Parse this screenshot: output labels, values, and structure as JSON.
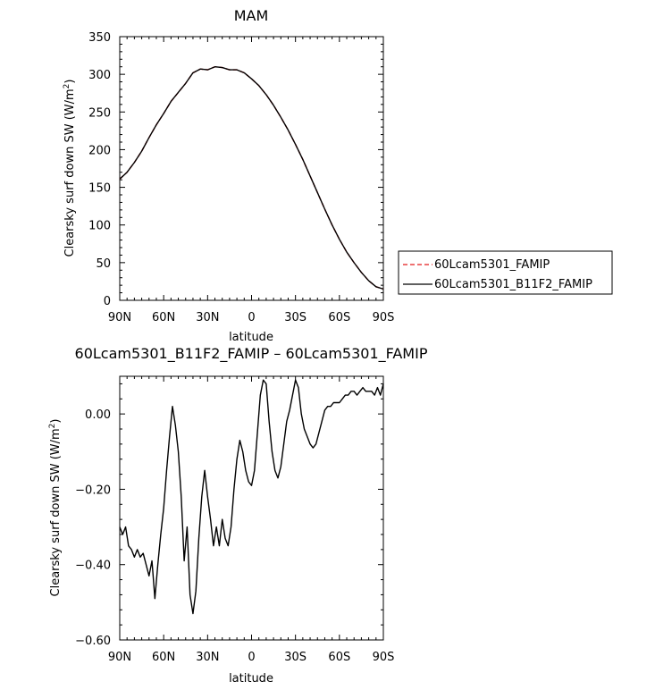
{
  "chart_data": [
    {
      "type": "line",
      "title": "MAM",
      "xlabel": "latitude",
      "ylabel": "Clearsky surf down SW (W/m²)",
      "ylabel_main": "Clearsky surf down SW (W/m",
      "ylabel_sup": "2",
      "ylabel_end": ")",
      "xlim": [
        90,
        -90
      ],
      "ylim": [
        0,
        350
      ],
      "xticks": [
        90,
        60,
        30,
        0,
        -30,
        -60,
        -90
      ],
      "xticklabels": [
        "90N",
        "60N",
        "30N",
        "0",
        "30S",
        "60S",
        "90S"
      ],
      "yticks": [
        0,
        50,
        100,
        150,
        200,
        250,
        300,
        350
      ],
      "yticklabels": [
        "0",
        "50",
        "100",
        "150",
        "200",
        "250",
        "300",
        "350"
      ],
      "legend_position": "right",
      "x": [
        90,
        85,
        80,
        75,
        70,
        65,
        60,
        55,
        50,
        45,
        40,
        35,
        30,
        25,
        20,
        15,
        10,
        5,
        0,
        -5,
        -10,
        -15,
        -20,
        -25,
        -30,
        -35,
        -40,
        -45,
        -50,
        -55,
        -60,
        -65,
        -70,
        -75,
        -80,
        -85,
        -90
      ],
      "series": [
        {
          "name": "60Lcam5301_FAMIP",
          "color": "#e41a1c",
          "dash": true,
          "values": [
            161,
            170,
            183,
            198,
            216,
            233,
            248,
            264,
            276,
            288,
            302,
            307,
            306,
            310,
            309,
            306,
            306,
            302,
            294,
            285,
            273,
            259,
            243,
            226,
            207,
            187,
            165,
            143,
            121,
            100,
            81,
            64,
            50,
            37,
            26,
            18,
            15
          ]
        },
        {
          "name": "60Lcam5301_B11F2_FAMIP",
          "color": "#000000",
          "dash": false,
          "values": [
            161,
            170,
            183,
            198,
            216,
            233,
            248,
            264,
            276,
            288,
            302,
            307,
            306,
            310,
            309,
            306,
            306,
            302,
            294,
            285,
            273,
            259,
            243,
            226,
            207,
            187,
            165,
            143,
            121,
            100,
            81,
            64,
            50,
            37,
            26,
            18,
            15
          ]
        }
      ]
    },
    {
      "type": "line",
      "title": "60Lcam5301_B11F2_FAMIP – 60Lcam5301_FAMIP",
      "xlabel": "latitude",
      "ylabel": "Clearsky surf down SW (W/m²)",
      "ylabel_main": "Clearsky surf down SW (W/m",
      "ylabel_sup": "2",
      "ylabel_end": ")",
      "xlim": [
        90,
        -90
      ],
      "ylim": [
        -0.6,
        0.1
      ],
      "xticks": [
        90,
        60,
        30,
        0,
        -30,
        -60,
        -90
      ],
      "xticklabels": [
        "90N",
        "60N",
        "30N",
        "0",
        "30S",
        "60S",
        "90S"
      ],
      "yticks": [
        0.0,
        -0.2,
        -0.4,
        -0.6
      ],
      "yticklabels": [
        "0.00",
        "−0.20",
        "−0.40",
        "−0.60"
      ],
      "x": [
        90,
        88,
        86,
        84,
        82,
        80,
        78,
        76,
        74,
        72,
        70,
        68,
        66,
        64,
        62,
        60,
        58,
        56,
        54,
        52,
        50,
        48,
        46,
        44,
        42,
        40,
        38,
        36,
        34,
        32,
        30,
        28,
        26,
        24,
        22,
        20,
        18,
        16,
        14,
        12,
        10,
        8,
        6,
        4,
        2,
        0,
        -2,
        -4,
        -6,
        -8,
        -10,
        -12,
        -14,
        -16,
        -18,
        -20,
        -22,
        -24,
        -26,
        -28,
        -30,
        -32,
        -34,
        -36,
        -38,
        -40,
        -42,
        -44,
        -46,
        -48,
        -50,
        -52,
        -54,
        -56,
        -58,
        -60,
        -62,
        -64,
        -66,
        -68,
        -70,
        -72,
        -74,
        -76,
        -78,
        -80,
        -82,
        -84,
        -86,
        -88,
        -90
      ],
      "series": [
        {
          "name": "",
          "color": "#000000",
          "dash": false,
          "values": [
            -0.3,
            -0.32,
            -0.3,
            -0.35,
            -0.36,
            -0.38,
            -0.36,
            -0.38,
            -0.37,
            -0.4,
            -0.43,
            -0.39,
            -0.49,
            -0.4,
            -0.32,
            -0.25,
            -0.15,
            -0.06,
            0.02,
            -0.03,
            -0.1,
            -0.22,
            -0.39,
            -0.3,
            -0.48,
            -0.53,
            -0.47,
            -0.33,
            -0.22,
            -0.15,
            -0.22,
            -0.28,
            -0.35,
            -0.3,
            -0.35,
            -0.28,
            -0.33,
            -0.35,
            -0.3,
            -0.2,
            -0.12,
            -0.07,
            -0.1,
            -0.15,
            -0.18,
            -0.19,
            -0.15,
            -0.05,
            0.05,
            0.09,
            0.08,
            -0.02,
            -0.1,
            -0.15,
            -0.17,
            -0.14,
            -0.08,
            -0.02,
            0.01,
            0.05,
            0.09,
            0.07,
            0.0,
            -0.04,
            -0.06,
            -0.08,
            -0.09,
            -0.08,
            -0.05,
            -0.02,
            0.01,
            0.02,
            0.02,
            0.03,
            0.03,
            0.03,
            0.04,
            0.05,
            0.05,
            0.06,
            0.06,
            0.05,
            0.06,
            0.07,
            0.06,
            0.06,
            0.06,
            0.05,
            0.07,
            0.05,
            0.08
          ]
        }
      ]
    }
  ]
}
